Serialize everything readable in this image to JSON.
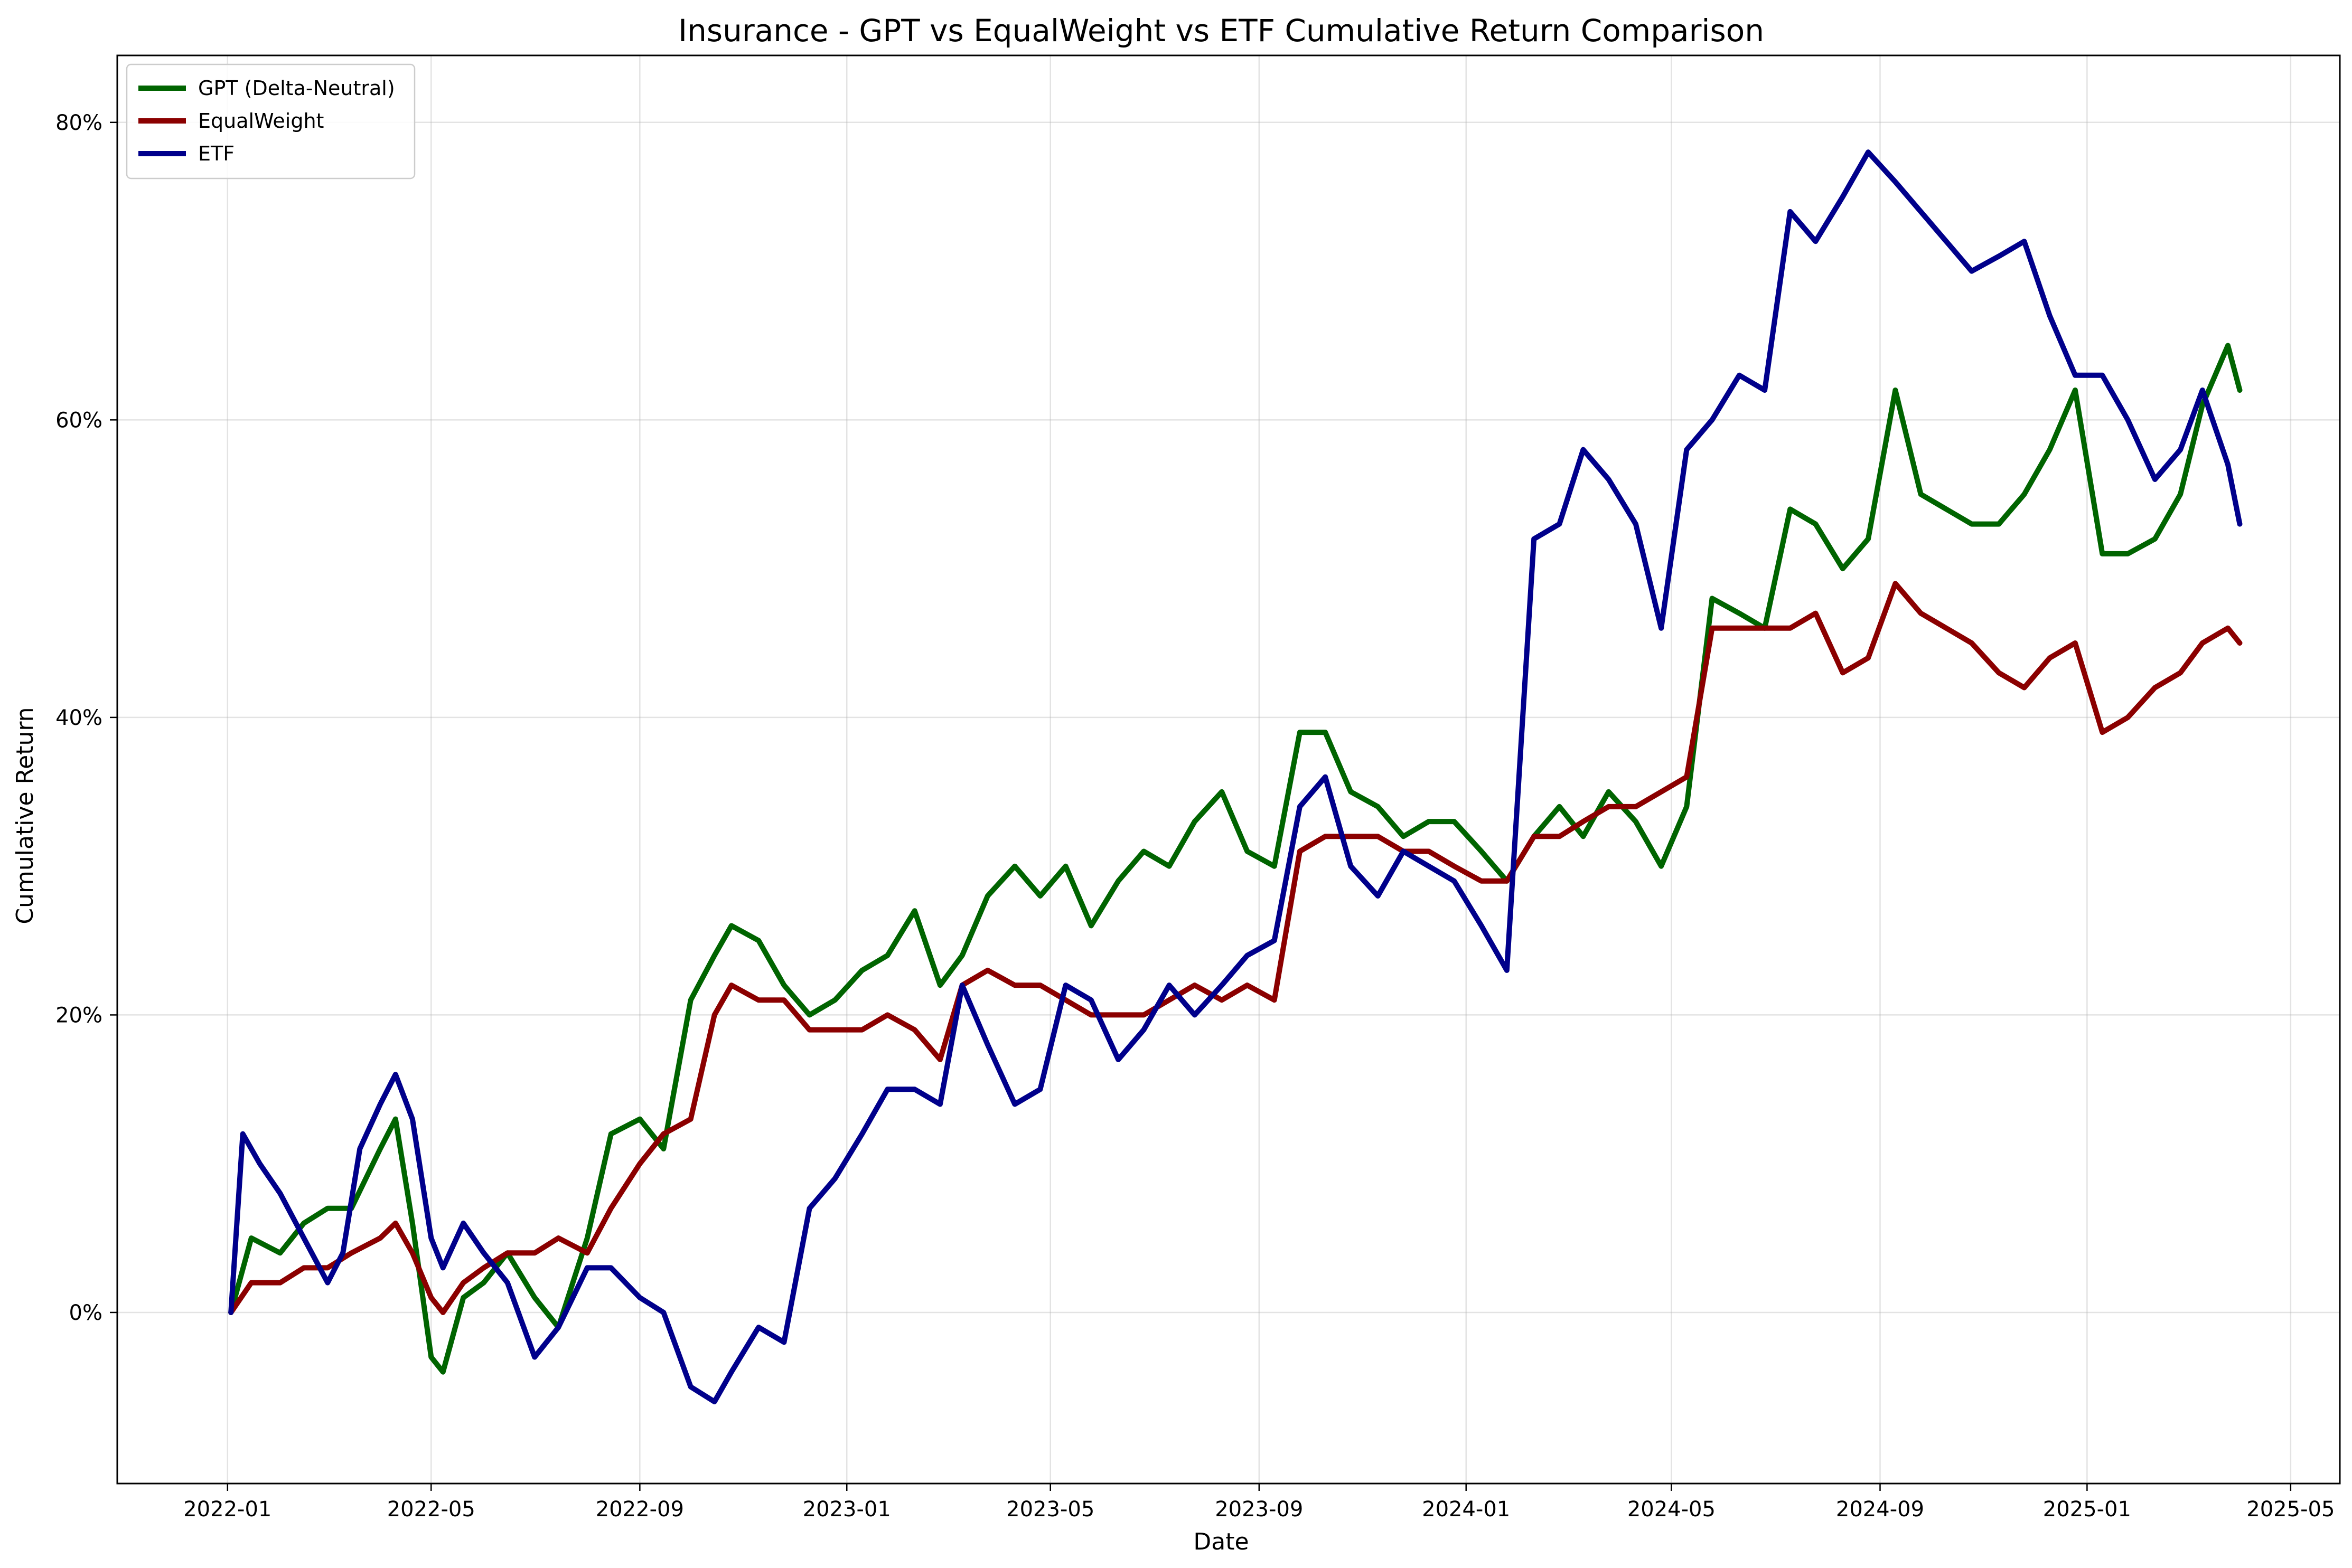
{
  "chart_data": {
    "type": "line",
    "title": "Insurance - GPT vs EqualWeight vs ETF Cumulative Return Comparison",
    "xlabel": "Date",
    "ylabel": "Cumulative Return",
    "x_axis_type": "date",
    "xlim": [
      "2021-10-28",
      "2025-05-30"
    ],
    "ylim": [
      -0.115,
      0.845
    ],
    "x_ticks": [
      "2022-01",
      "2022-05",
      "2022-09",
      "2023-01",
      "2023-05",
      "2023-09",
      "2024-01",
      "2024-05",
      "2024-09",
      "2025-01",
      "2025-05"
    ],
    "y_ticks": [
      0,
      0.2,
      0.4,
      0.6,
      0.8
    ],
    "y_tick_labels": [
      "0%",
      "20%",
      "40%",
      "60%",
      "80%"
    ],
    "grid": true,
    "legend_position": "top-left",
    "series": [
      {
        "name": "GPT (Delta-Neutral)",
        "color": "#006400",
        "x": [
          "2022-01-03",
          "2022-01-15",
          "2022-02-01",
          "2022-02-15",
          "2022-03-01",
          "2022-03-15",
          "2022-04-01",
          "2022-04-10",
          "2022-04-20",
          "2022-05-01",
          "2022-05-08",
          "2022-05-20",
          "2022-06-01",
          "2022-06-15",
          "2022-07-01",
          "2022-07-15",
          "2022-08-01",
          "2022-08-15",
          "2022-09-01",
          "2022-09-15",
          "2022-10-01",
          "2022-10-15",
          "2022-10-25",
          "2022-11-10",
          "2022-11-25",
          "2022-12-10",
          "2022-12-25",
          "2023-01-10",
          "2023-01-25",
          "2023-02-10",
          "2023-02-25",
          "2023-03-10",
          "2023-03-25",
          "2023-04-10",
          "2023-04-25",
          "2023-05-10",
          "2023-05-25",
          "2023-06-10",
          "2023-06-25",
          "2023-07-10",
          "2023-07-25",
          "2023-08-10",
          "2023-08-25",
          "2023-09-10",
          "2023-09-25",
          "2023-10-10",
          "2023-10-25",
          "2023-11-10",
          "2023-11-25",
          "2023-12-10",
          "2023-12-25",
          "2024-01-10",
          "2024-01-25",
          "2024-02-10",
          "2024-02-25",
          "2024-03-10",
          "2024-03-25",
          "2024-04-10",
          "2024-04-25",
          "2024-05-10",
          "2024-05-25",
          "2024-06-10",
          "2024-06-25",
          "2024-07-10",
          "2024-07-25",
          "2024-08-10",
          "2024-08-25",
          "2024-09-10",
          "2024-09-25",
          "2024-10-10",
          "2024-10-25",
          "2024-11-10",
          "2024-11-25",
          "2024-12-10",
          "2024-12-25",
          "2025-01-10",
          "2025-01-25",
          "2025-02-10",
          "2025-02-25",
          "2025-03-10",
          "2025-03-25",
          "2025-04-01"
        ],
        "y": [
          0.0,
          0.05,
          0.04,
          0.06,
          0.07,
          0.07,
          0.11,
          0.13,
          0.06,
          -0.03,
          -0.04,
          0.01,
          0.02,
          0.04,
          0.01,
          -0.01,
          0.05,
          0.12,
          0.13,
          0.11,
          0.21,
          0.24,
          0.26,
          0.25,
          0.22,
          0.2,
          0.21,
          0.23,
          0.24,
          0.27,
          0.22,
          0.24,
          0.28,
          0.3,
          0.28,
          0.3,
          0.26,
          0.29,
          0.31,
          0.3,
          0.33,
          0.35,
          0.31,
          0.3,
          0.39,
          0.39,
          0.35,
          0.34,
          0.32,
          0.33,
          0.33,
          0.31,
          0.29,
          0.32,
          0.34,
          0.32,
          0.35,
          0.33,
          0.3,
          0.34,
          0.48,
          0.47,
          0.46,
          0.54,
          0.53,
          0.5,
          0.52,
          0.62,
          0.55,
          0.54,
          0.53,
          0.53,
          0.55,
          0.58,
          0.62,
          0.51,
          0.51,
          0.52,
          0.55,
          0.61,
          0.65,
          0.62
        ]
      },
      {
        "name": "EqualWeight",
        "color": "#8b0000",
        "x": [
          "2022-01-03",
          "2022-01-15",
          "2022-02-01",
          "2022-02-15",
          "2022-03-01",
          "2022-03-15",
          "2022-04-01",
          "2022-04-10",
          "2022-04-20",
          "2022-05-01",
          "2022-05-08",
          "2022-05-20",
          "2022-06-01",
          "2022-06-15",
          "2022-07-01",
          "2022-07-15",
          "2022-08-01",
          "2022-08-15",
          "2022-09-01",
          "2022-09-15",
          "2022-10-01",
          "2022-10-15",
          "2022-10-25",
          "2022-11-10",
          "2022-11-25",
          "2022-12-10",
          "2022-12-25",
          "2023-01-10",
          "2023-01-25",
          "2023-02-10",
          "2023-02-25",
          "2023-03-10",
          "2023-03-25",
          "2023-04-10",
          "2023-04-25",
          "2023-05-10",
          "2023-05-25",
          "2023-06-10",
          "2023-06-25",
          "2023-07-10",
          "2023-07-25",
          "2023-08-10",
          "2023-08-25",
          "2023-09-10",
          "2023-09-25",
          "2023-10-10",
          "2023-10-25",
          "2023-11-10",
          "2023-11-25",
          "2023-12-10",
          "2023-12-25",
          "2024-01-10",
          "2024-01-25",
          "2024-02-10",
          "2024-02-25",
          "2024-03-10",
          "2024-03-25",
          "2024-04-10",
          "2024-04-25",
          "2024-05-10",
          "2024-05-25",
          "2024-06-10",
          "2024-06-25",
          "2024-07-10",
          "2024-07-25",
          "2024-08-10",
          "2024-08-25",
          "2024-09-10",
          "2024-09-25",
          "2024-10-10",
          "2024-10-25",
          "2024-11-10",
          "2024-11-25",
          "2024-12-10",
          "2024-12-25",
          "2025-01-10",
          "2025-01-25",
          "2025-02-10",
          "2025-02-25",
          "2025-03-10",
          "2025-03-25",
          "2025-04-01"
        ],
        "y": [
          0.0,
          0.02,
          0.02,
          0.03,
          0.03,
          0.04,
          0.05,
          0.06,
          0.04,
          0.01,
          0.0,
          0.02,
          0.03,
          0.04,
          0.04,
          0.05,
          0.04,
          0.07,
          0.1,
          0.12,
          0.13,
          0.2,
          0.22,
          0.21,
          0.21,
          0.19,
          0.19,
          0.19,
          0.2,
          0.19,
          0.17,
          0.22,
          0.23,
          0.22,
          0.22,
          0.21,
          0.2,
          0.2,
          0.2,
          0.21,
          0.22,
          0.21,
          0.22,
          0.21,
          0.31,
          0.32,
          0.32,
          0.32,
          0.31,
          0.31,
          0.3,
          0.29,
          0.29,
          0.32,
          0.32,
          0.33,
          0.34,
          0.34,
          0.35,
          0.36,
          0.46,
          0.46,
          0.46,
          0.46,
          0.47,
          0.43,
          0.44,
          0.49,
          0.47,
          0.46,
          0.45,
          0.43,
          0.42,
          0.44,
          0.45,
          0.39,
          0.4,
          0.42,
          0.43,
          0.45,
          0.46,
          0.45
        ]
      },
      {
        "name": "ETF",
        "color": "#00008b",
        "x": [
          "2022-01-03",
          "2022-01-10",
          "2022-01-20",
          "2022-02-01",
          "2022-02-15",
          "2022-03-01",
          "2022-03-10",
          "2022-03-20",
          "2022-04-01",
          "2022-04-10",
          "2022-04-20",
          "2022-05-01",
          "2022-05-08",
          "2022-05-20",
          "2022-06-01",
          "2022-06-15",
          "2022-07-01",
          "2022-07-15",
          "2022-08-01",
          "2022-08-15",
          "2022-09-01",
          "2022-09-15",
          "2022-10-01",
          "2022-10-15",
          "2022-10-25",
          "2022-11-10",
          "2022-11-25",
          "2022-12-10",
          "2022-12-25",
          "2023-01-10",
          "2023-01-25",
          "2023-02-10",
          "2023-02-25",
          "2023-03-10",
          "2023-03-25",
          "2023-04-10",
          "2023-04-25",
          "2023-05-10",
          "2023-05-25",
          "2023-06-10",
          "2023-06-25",
          "2023-07-10",
          "2023-07-25",
          "2023-08-10",
          "2023-08-25",
          "2023-09-10",
          "2023-09-25",
          "2023-10-10",
          "2023-10-25",
          "2023-11-10",
          "2023-11-25",
          "2023-12-10",
          "2023-12-25",
          "2024-01-10",
          "2024-01-25",
          "2024-02-10",
          "2024-02-25",
          "2024-03-10",
          "2024-03-25",
          "2024-04-10",
          "2024-04-25",
          "2024-05-10",
          "2024-05-25",
          "2024-06-10",
          "2024-06-25",
          "2024-07-10",
          "2024-07-25",
          "2024-08-10",
          "2024-08-25",
          "2024-09-10",
          "2024-09-25",
          "2024-10-10",
          "2024-10-25",
          "2024-11-10",
          "2024-11-25",
          "2024-12-10",
          "2024-12-25",
          "2025-01-10",
          "2025-01-25",
          "2025-02-10",
          "2025-02-25",
          "2025-03-10",
          "2025-03-25",
          "2025-04-01"
        ],
        "y": [
          0.0,
          0.12,
          0.1,
          0.08,
          0.05,
          0.02,
          0.04,
          0.11,
          0.14,
          0.16,
          0.13,
          0.05,
          0.03,
          0.06,
          0.04,
          0.02,
          -0.03,
          -0.01,
          0.03,
          0.03,
          0.01,
          0.0,
          -0.05,
          -0.06,
          -0.04,
          -0.01,
          -0.02,
          0.07,
          0.09,
          0.12,
          0.15,
          0.15,
          0.14,
          0.22,
          0.18,
          0.14,
          0.15,
          0.22,
          0.21,
          0.17,
          0.19,
          0.22,
          0.2,
          0.22,
          0.24,
          0.25,
          0.34,
          0.36,
          0.3,
          0.28,
          0.31,
          0.3,
          0.29,
          0.26,
          0.23,
          0.52,
          0.53,
          0.58,
          0.56,
          0.53,
          0.46,
          0.58,
          0.6,
          0.63,
          0.62,
          0.74,
          0.72,
          0.75,
          0.78,
          0.76,
          0.74,
          0.72,
          0.7,
          0.71,
          0.72,
          0.67,
          0.63,
          0.63,
          0.6,
          0.56,
          0.58,
          0.62,
          0.57,
          0.53
        ]
      }
    ]
  }
}
